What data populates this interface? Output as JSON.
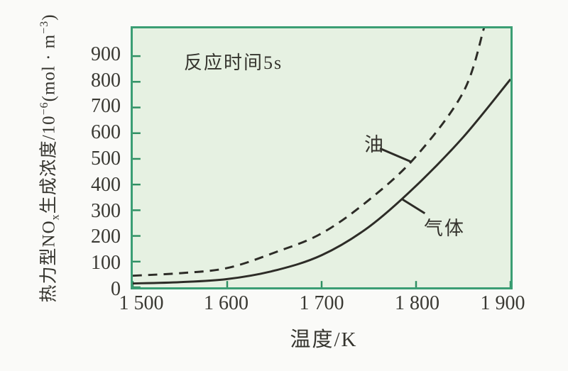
{
  "figure": {
    "annotation": "反应时间5s",
    "xlabel": "温度/K",
    "ylabel_parts": {
      "p1": "热力型NO",
      "sub1": "x",
      "p2": "生成浓度/10",
      "sup1": "−6",
      "p3": "(mol · m",
      "sup2": "−3",
      "p4": ")"
    },
    "curve_labels": {
      "oil": "油",
      "gas": "气体"
    },
    "colors": {
      "plot_background": "#e6f1e2",
      "plot_border": "#3b9e74",
      "tick": "#2f8f63",
      "curve": "#2d2c27",
      "text": "#35342e",
      "page_background": "#fafaf8"
    }
  },
  "chart_data": {
    "type": "line",
    "title": "",
    "annotation": "反应时间5s",
    "xlabel": "温度/K",
    "ylabel": "热力型NOx生成浓度/10−6(mol·m−3)",
    "xlim": [
      1500,
      1900
    ],
    "ylim": [
      0,
      1008
    ],
    "grid": false,
    "legend": "inline-labels",
    "x_tick_values": [
      1500,
      1600,
      1700,
      1800,
      1900
    ],
    "x_tick_labels": [
      "1 500",
      "1 600",
      "1 700",
      "1 800",
      "1 900"
    ],
    "y_tick_values": [
      0,
      100,
      200,
      300,
      400,
      500,
      600,
      700,
      800,
      900
    ],
    "y_tick_labels": [
      "0",
      "100",
      "200",
      "300",
      "400",
      "500",
      "600",
      "700",
      "800",
      "900"
    ],
    "series": [
      {
        "name": "油",
        "style": "dashed",
        "x": [
          1500,
          1550,
          1600,
          1650,
          1700,
          1750,
          1800,
          1850,
          1872
        ],
        "values": [
          45,
          55,
          75,
          135,
          210,
          340,
          510,
          760,
          1010
        ]
      },
      {
        "name": "气体",
        "style": "solid",
        "x": [
          1500,
          1550,
          1600,
          1650,
          1700,
          1750,
          1800,
          1850,
          1900
        ],
        "values": [
          15,
          20,
          32,
          65,
          125,
          235,
          395,
          585,
          810
        ]
      }
    ]
  }
}
